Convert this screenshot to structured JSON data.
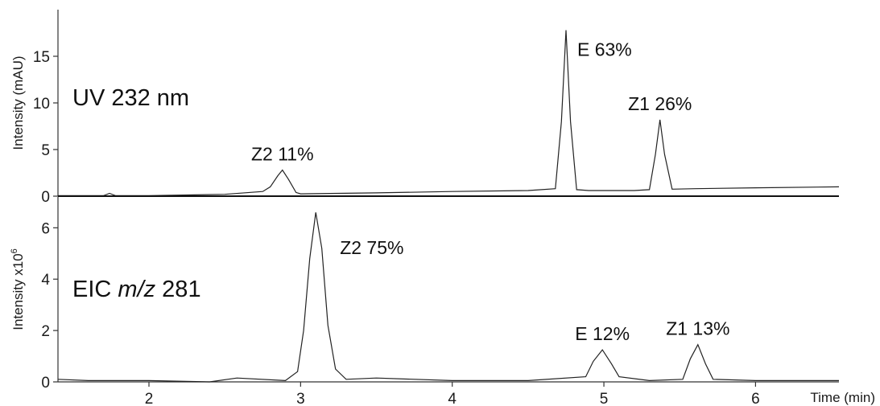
{
  "chart_data": [
    {
      "type": "line",
      "panel_label": "UV 232 nm",
      "ylabel": "Intensity (mAU)",
      "ylim": [
        0,
        20
      ],
      "xlim": [
        1.4,
        6.55
      ],
      "yticks": [
        "0",
        "5",
        "10",
        "15"
      ],
      "xticks": [],
      "peaks": [
        {
          "label": "Z2 11%",
          "x": 2.88,
          "height": 2.8
        },
        {
          "label": "E 63%",
          "x": 4.75,
          "height": 17.8
        },
        {
          "label": "Z1 26%",
          "x": 5.37,
          "height": 8.2
        }
      ],
      "series": [
        {
          "x": [
            1.4,
            1.7,
            1.74,
            1.78,
            2.0,
            2.5,
            2.75,
            2.8,
            2.85,
            2.88,
            2.92,
            2.97,
            3.0,
            3.5,
            4.0,
            4.5,
            4.68,
            4.72,
            4.75,
            4.78,
            4.82,
            4.9,
            5.2,
            5.3,
            5.34,
            5.37,
            5.4,
            5.45,
            5.6,
            6.0,
            6.55
          ],
          "y": [
            0.05,
            0.05,
            0.3,
            0.05,
            0.05,
            0.2,
            0.5,
            1.0,
            2.2,
            2.8,
            1.8,
            0.4,
            0.25,
            0.35,
            0.5,
            0.6,
            0.8,
            8.0,
            17.8,
            8.0,
            0.7,
            0.6,
            0.6,
            0.7,
            4.5,
            8.2,
            4.5,
            0.75,
            0.8,
            0.9,
            1.0
          ]
        }
      ]
    },
    {
      "type": "line",
      "panel_label_prefix": "EIC ",
      "panel_label_italic": "m/z",
      "panel_label_suffix": " 281",
      "ylabel_main": "Intensity x10",
      "ylabel_exp": "6",
      "ylim": [
        0,
        7.2
      ],
      "xlim": [
        1.4,
        6.55
      ],
      "yticks": [
        "0",
        "2",
        "4",
        "6"
      ],
      "xticks": [
        "2",
        "3",
        "4",
        "5",
        "6"
      ],
      "xlabel": "Time (min)",
      "peaks": [
        {
          "label": "Z2 75%",
          "x": 3.1,
          "height": 6.6
        },
        {
          "label": "E 12%",
          "x": 4.99,
          "height": 1.25
        },
        {
          "label": "Z1 13%",
          "x": 5.62,
          "height": 1.45
        }
      ],
      "series": [
        {
          "x": [
            1.4,
            1.6,
            2.0,
            2.4,
            2.58,
            2.9,
            2.98,
            3.02,
            3.06,
            3.1,
            3.14,
            3.18,
            3.23,
            3.3,
            3.5,
            4.0,
            4.5,
            4.88,
            4.93,
            4.99,
            5.05,
            5.1,
            5.3,
            5.52,
            5.57,
            5.62,
            5.67,
            5.72,
            6.0,
            6.55
          ],
          "y": [
            0.1,
            0.05,
            0.05,
            0.0,
            0.15,
            0.05,
            0.4,
            2.0,
            4.8,
            6.6,
            5.2,
            2.2,
            0.5,
            0.1,
            0.15,
            0.05,
            0.05,
            0.2,
            0.8,
            1.25,
            0.7,
            0.2,
            0.05,
            0.1,
            0.9,
            1.45,
            0.7,
            0.1,
            0.05,
            0.05
          ]
        }
      ]
    }
  ]
}
